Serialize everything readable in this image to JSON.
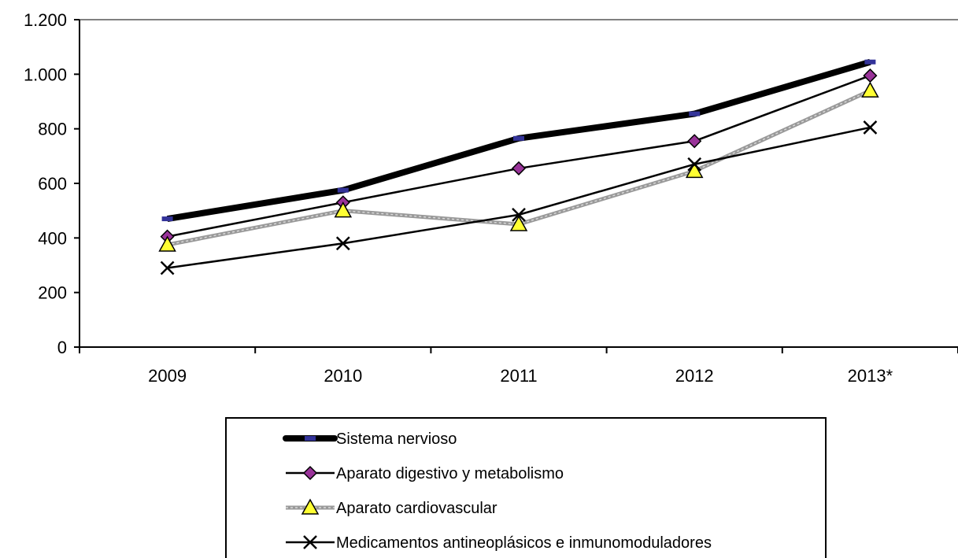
{
  "chart_data": {
    "type": "line",
    "categories": [
      "2009",
      "2010",
      "2011",
      "2012",
      "2013*"
    ],
    "ylim": [
      0,
      1200
    ],
    "yticks": [
      0,
      200,
      400,
      600,
      800,
      1000,
      1200
    ],
    "ytick_labels": [
      "0",
      "200",
      "400",
      "600",
      "800",
      "1.000",
      "1.200"
    ],
    "grid": false,
    "legend_position": "bottom-center",
    "series": [
      {
        "name": "Sistema nervioso",
        "values": [
          470,
          575,
          765,
          855,
          1045
        ],
        "color": "#000000",
        "marker": "dash",
        "marker_color": "#333399"
      },
      {
        "name": "Aparato digestivo y metabolismo",
        "values": [
          405,
          530,
          655,
          755,
          995
        ],
        "color": "#000000",
        "marker": "diamond",
        "marker_color": "#993399"
      },
      {
        "name": "Aparato cardiovascular",
        "values": [
          375,
          500,
          450,
          645,
          940
        ],
        "color": "#999999",
        "marker": "triangle",
        "marker_color": "#ffff33"
      },
      {
        "name": "Medicamentos antineoplásicos e inmunomoduladores",
        "values": [
          290,
          380,
          485,
          670,
          805
        ],
        "color": "#000000",
        "marker": "x",
        "marker_color": "#000000"
      }
    ]
  }
}
